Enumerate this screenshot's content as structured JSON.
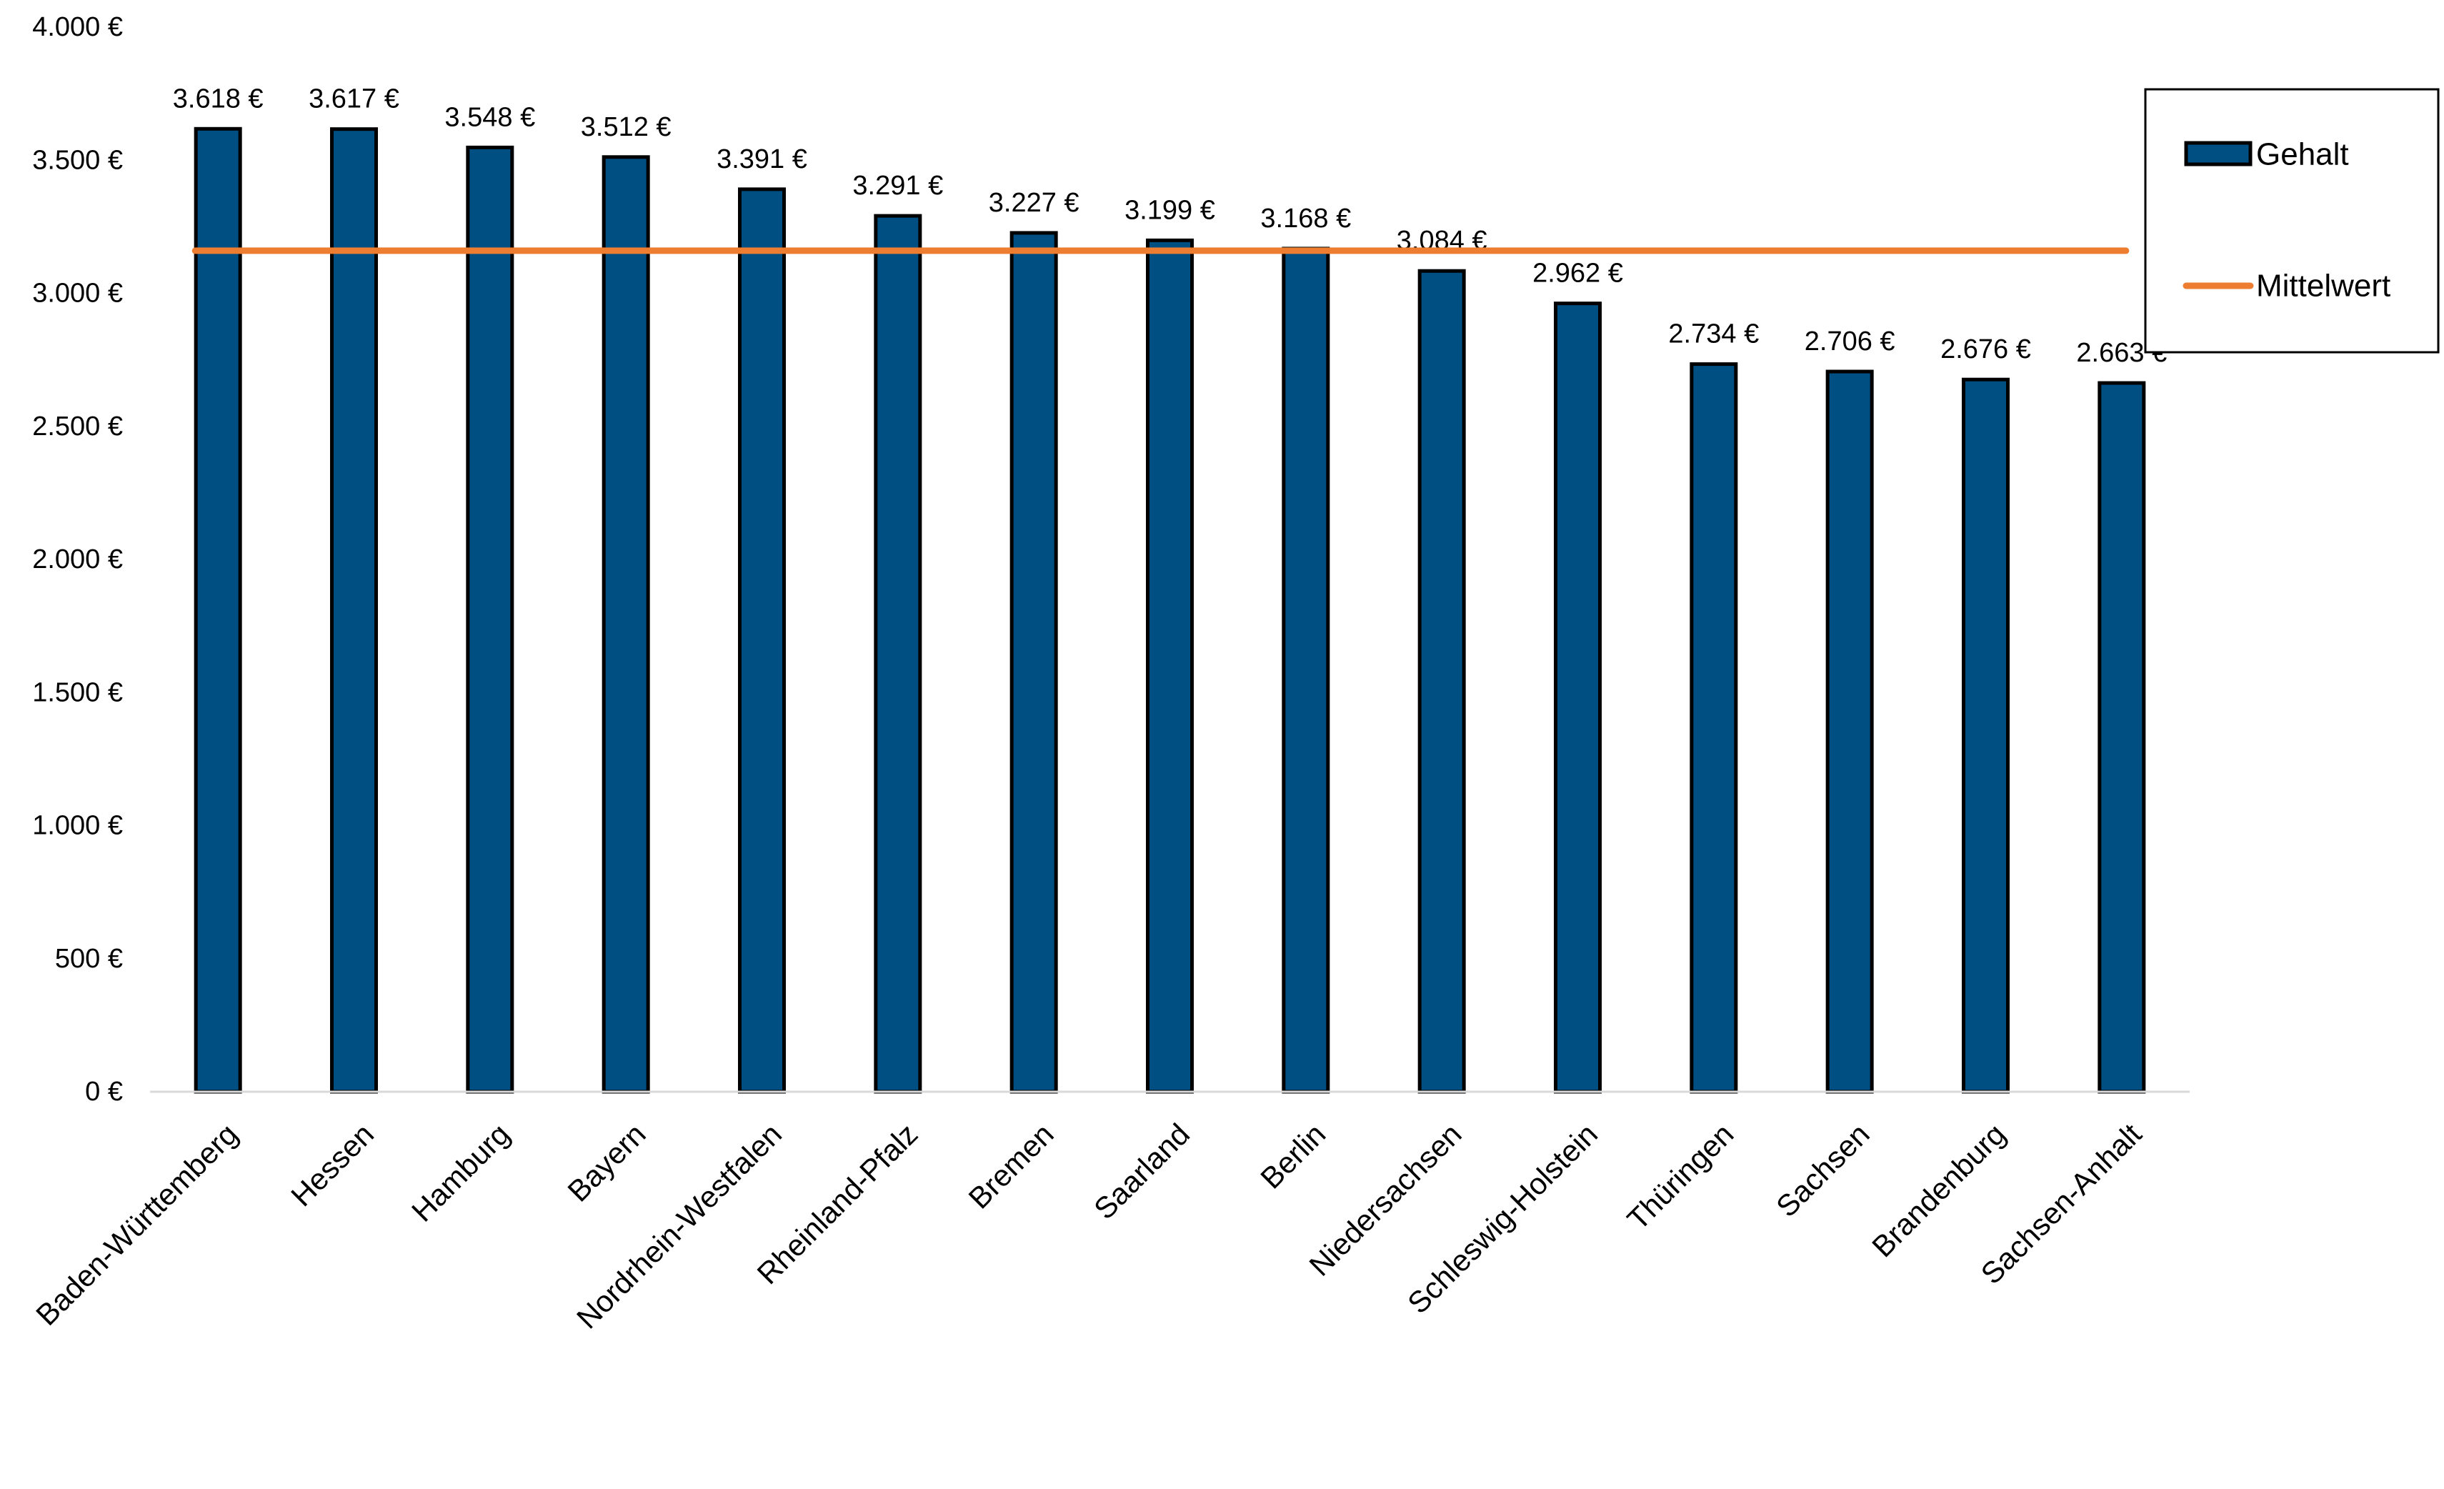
{
  "chart_data": {
    "type": "bar",
    "title": "",
    "xlabel": "",
    "ylabel": "",
    "categories": [
      "Baden-Württemberg",
      "Hessen",
      "Hamburg",
      "Bayern",
      "Nordrhein-Westfalen",
      "Rheinland-Pfalz",
      "Bremen",
      "Saarland",
      "Berlin",
      "Niedersachsen",
      "Schleswig-Holstein",
      "Thüringen",
      "Sachsen",
      "Brandenburg",
      "Sachsen-Anhalt"
    ],
    "series": [
      {
        "name": "Gehalt",
        "type": "bar",
        "color": "#004f82",
        "values": [
          3618,
          3617,
          3548,
          3512,
          3391,
          3291,
          3227,
          3199,
          3168,
          3084,
          2962,
          2734,
          2706,
          2676,
          2663
        ],
        "labels": [
          "3.618 €",
          "3.617 €",
          "3.548 €",
          "3.512 €",
          "3.391 €",
          "3.291 €",
          "3.227 €",
          "3.199 €",
          "3.168 €",
          "3.084 €",
          "2.962 €",
          "2.734 €",
          "2.706 €",
          "2.676 €",
          "2.663 €"
        ]
      },
      {
        "name": "Mittelwert",
        "type": "line",
        "color": "#ed7d31",
        "value": 3160
      }
    ],
    "ylim": [
      0,
      4000
    ],
    "yticks": [
      0,
      500,
      1000,
      1500,
      2000,
      2500,
      3000,
      3500,
      4000
    ],
    "ytick_labels": [
      "0 €",
      "500 €",
      "1.000 €",
      "1.500 €",
      "2.000 €",
      "2.500 €",
      "3.000 €",
      "3.500 €",
      "4.000 €"
    ],
    "grid": false,
    "legend_position": "top-right"
  }
}
